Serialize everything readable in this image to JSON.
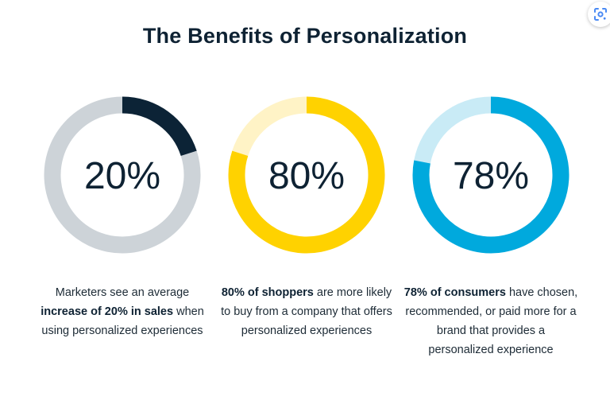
{
  "title": "The Benefits of Personalization",
  "lens_icon": "google-lens-icon",
  "colors": {
    "navy": "#0c2336",
    "gray_track": "#cdd3d8",
    "yellow": "#ffd200",
    "yellow_light": "#fff3c6",
    "blue": "#00a9dd",
    "blue_light": "#c9ebf6"
  },
  "chart_data": [
    {
      "type": "pie",
      "variant": "donut",
      "value": 20,
      "unit": "%",
      "label": "20%",
      "fill_color": "#0c2336",
      "track_color": "#cdd3d8",
      "caption": {
        "pre": "Marketers see an average",
        "bold": "increase of 20% in sales",
        "post": "when using personalized experiences"
      }
    },
    {
      "type": "pie",
      "variant": "donut",
      "value": 80,
      "unit": "%",
      "label": "80%",
      "fill_color": "#ffd200",
      "track_color": "#fff3c6",
      "caption": {
        "pre": "",
        "bold": "80% of shoppers",
        "post": "are more likely to buy from a company that offers personalized experiences"
      }
    },
    {
      "type": "pie",
      "variant": "donut",
      "value": 78,
      "unit": "%",
      "label": "78%",
      "fill_color": "#00a9dd",
      "track_color": "#c9ebf6",
      "caption": {
        "pre": "",
        "bold": "78% of consumers",
        "post": "have chosen, recommended, or paid more for a brand that provides a personalized experience"
      }
    }
  ]
}
